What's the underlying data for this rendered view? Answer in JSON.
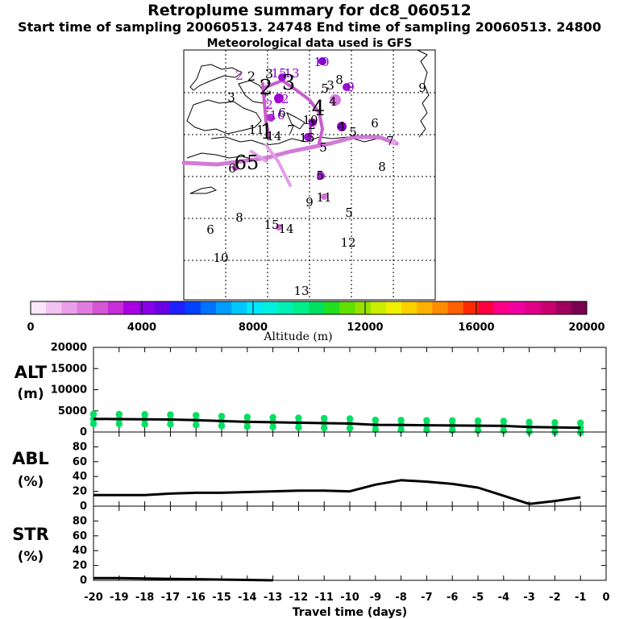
{
  "header": {
    "title": "Retroplume summary for dc8_060512",
    "sampling": "Start time of sampling 20060513. 24748     End time of sampling 20060513. 24800",
    "met": "Meteorological data used is GFS"
  },
  "colorbar": {
    "label": "Altitude (m)",
    "ticks": [
      "0",
      "4000",
      "8000",
      "12000",
      "16000",
      "20000"
    ],
    "colors": [
      "#fbe6fb",
      "#f2c3f2",
      "#e9a0e9",
      "#e07de0",
      "#d457d4",
      "#c72dd9",
      "#a800e0",
      "#8a00e6",
      "#6a00e6",
      "#2020ff",
      "#0040ff",
      "#0072ff",
      "#009cff",
      "#00c8ff",
      "#00e8ff",
      "#00f0e0",
      "#00f0b4",
      "#00ee88",
      "#00e060",
      "#20e020",
      "#60e000",
      "#98e000",
      "#c8ee00",
      "#f0f000",
      "#ffd000",
      "#ffb000",
      "#ff8c00",
      "#ff6000",
      "#ff2a00",
      "#ff0040",
      "#ff0088",
      "#f000a0",
      "#e00088",
      "#c80070",
      "#a00060",
      "#7a0050"
    ]
  },
  "map": {
    "labels": [
      {
        "t": "10",
        "c": "#6a00c8"
      },
      {
        "t": "2",
        "c": "#a040a0"
      },
      {
        "t": "2",
        "c": "#000"
      },
      {
        "t": "3",
        "c": "#000"
      },
      {
        "t": "13",
        "c": "#8a00c8"
      },
      {
        "t": "15",
        "c": "#8a00c8"
      },
      {
        "t": "2",
        "c": "#000"
      },
      {
        "t": "3",
        "c": "#000"
      },
      {
        "t": "5",
        "c": "#000"
      },
      {
        "t": "8",
        "c": "#000"
      },
      {
        "t": "3",
        "c": "#000"
      },
      {
        "t": "9",
        "c": "#8a00c8"
      },
      {
        "t": "9",
        "c": "#000"
      },
      {
        "t": "12",
        "c": "#a000d0"
      },
      {
        "t": "3",
        "c": "#000"
      },
      {
        "t": "4",
        "c": "#000"
      },
      {
        "t": "4",
        "c": "#000"
      },
      {
        "t": "2",
        "c": "#a000d0"
      },
      {
        "t": "6",
        "c": "#000"
      },
      {
        "t": "16",
        "c": "#8a00c8"
      },
      {
        "t": "2",
        "c": "#000"
      },
      {
        "t": "10",
        "c": "#000"
      },
      {
        "t": "6",
        "c": "#000"
      },
      {
        "t": "11",
        "c": "#000"
      },
      {
        "t": "14",
        "c": "#000"
      },
      {
        "t": "7",
        "c": "#000"
      },
      {
        "t": "1",
        "c": "#000"
      },
      {
        "t": "15",
        "c": "#000"
      },
      {
        "t": "4",
        "c": "#000"
      },
      {
        "t": "5",
        "c": "#000"
      },
      {
        "t": "5",
        "c": "#000"
      },
      {
        "t": "7",
        "c": "#000"
      },
      {
        "t": "6",
        "c": "#000"
      },
      {
        "t": "65",
        "c": "#000"
      },
      {
        "t": "8",
        "c": "#000"
      },
      {
        "t": "5",
        "c": "#000"
      },
      {
        "t": "11",
        "c": "#000"
      },
      {
        "t": "9",
        "c": "#000"
      },
      {
        "t": "5",
        "c": "#000"
      },
      {
        "t": "8",
        "c": "#000"
      },
      {
        "t": "15",
        "c": "#000"
      },
      {
        "t": "14",
        "c": "#000"
      },
      {
        "t": "6",
        "c": "#000"
      },
      {
        "t": "12",
        "c": "#000"
      },
      {
        "t": "10",
        "c": "#000"
      },
      {
        "t": "13",
        "c": "#000"
      }
    ]
  },
  "chart_data": [
    {
      "type": "line",
      "title": "ALT",
      "side_label": "ALT",
      "unit_label": "(m)",
      "ylim": [
        0,
        20000
      ],
      "yticks": [
        "20000",
        "15000",
        "10000",
        "5000",
        "0"
      ],
      "x": [
        -20,
        -19,
        -18,
        -17,
        -16,
        -15,
        -14,
        -13,
        -12,
        -11,
        -10,
        -9,
        -8,
        -7,
        -6,
        -5,
        -4,
        -3,
        -2,
        -1
      ],
      "values": [
        3100,
        3050,
        3000,
        2950,
        2800,
        2600,
        2400,
        2300,
        2200,
        2100,
        2000,
        1700,
        1650,
        1600,
        1550,
        1500,
        1450,
        1200,
        1100,
        1000
      ],
      "scatter_color": "#00e060"
    },
    {
      "type": "line",
      "title": "ABL",
      "side_label": "ABL",
      "unit_label": "(%)",
      "ylim": [
        0,
        100
      ],
      "yticks": [
        "80",
        "60",
        "40",
        "20",
        "0"
      ],
      "x": [
        -20,
        -19,
        -18,
        -17,
        -16,
        -15,
        -14,
        -13,
        -12,
        -11,
        -10,
        -9,
        -8,
        -7,
        -6,
        -5,
        -4,
        -3,
        -2,
        -1
      ],
      "values": [
        15,
        15,
        15,
        17,
        18,
        18,
        19,
        20,
        21,
        21,
        20,
        29,
        35,
        33,
        30,
        25,
        14,
        3,
        7,
        12
      ]
    },
    {
      "type": "line",
      "title": "STR",
      "side_label": "STR",
      "unit_label": "(%)",
      "ylim": [
        0,
        100
      ],
      "yticks": [
        "80",
        "60",
        "40",
        "20",
        "0"
      ],
      "x": [
        -20,
        -19,
        -18,
        -17,
        -16,
        -15,
        -14,
        -13
      ],
      "values": [
        3,
        3,
        2.5,
        2,
        1.5,
        1,
        0.5,
        0
      ],
      "xlabel": "Travel time (days)",
      "xticks": [
        "-20",
        "-19",
        "-18",
        "-17",
        "-16",
        "-15",
        "-14",
        "-13",
        "-12",
        "-11",
        "-10",
        "-9",
        "-8",
        "-7",
        "-6",
        "-5",
        "-4",
        "-3",
        "-2",
        "-1",
        "0"
      ]
    }
  ]
}
